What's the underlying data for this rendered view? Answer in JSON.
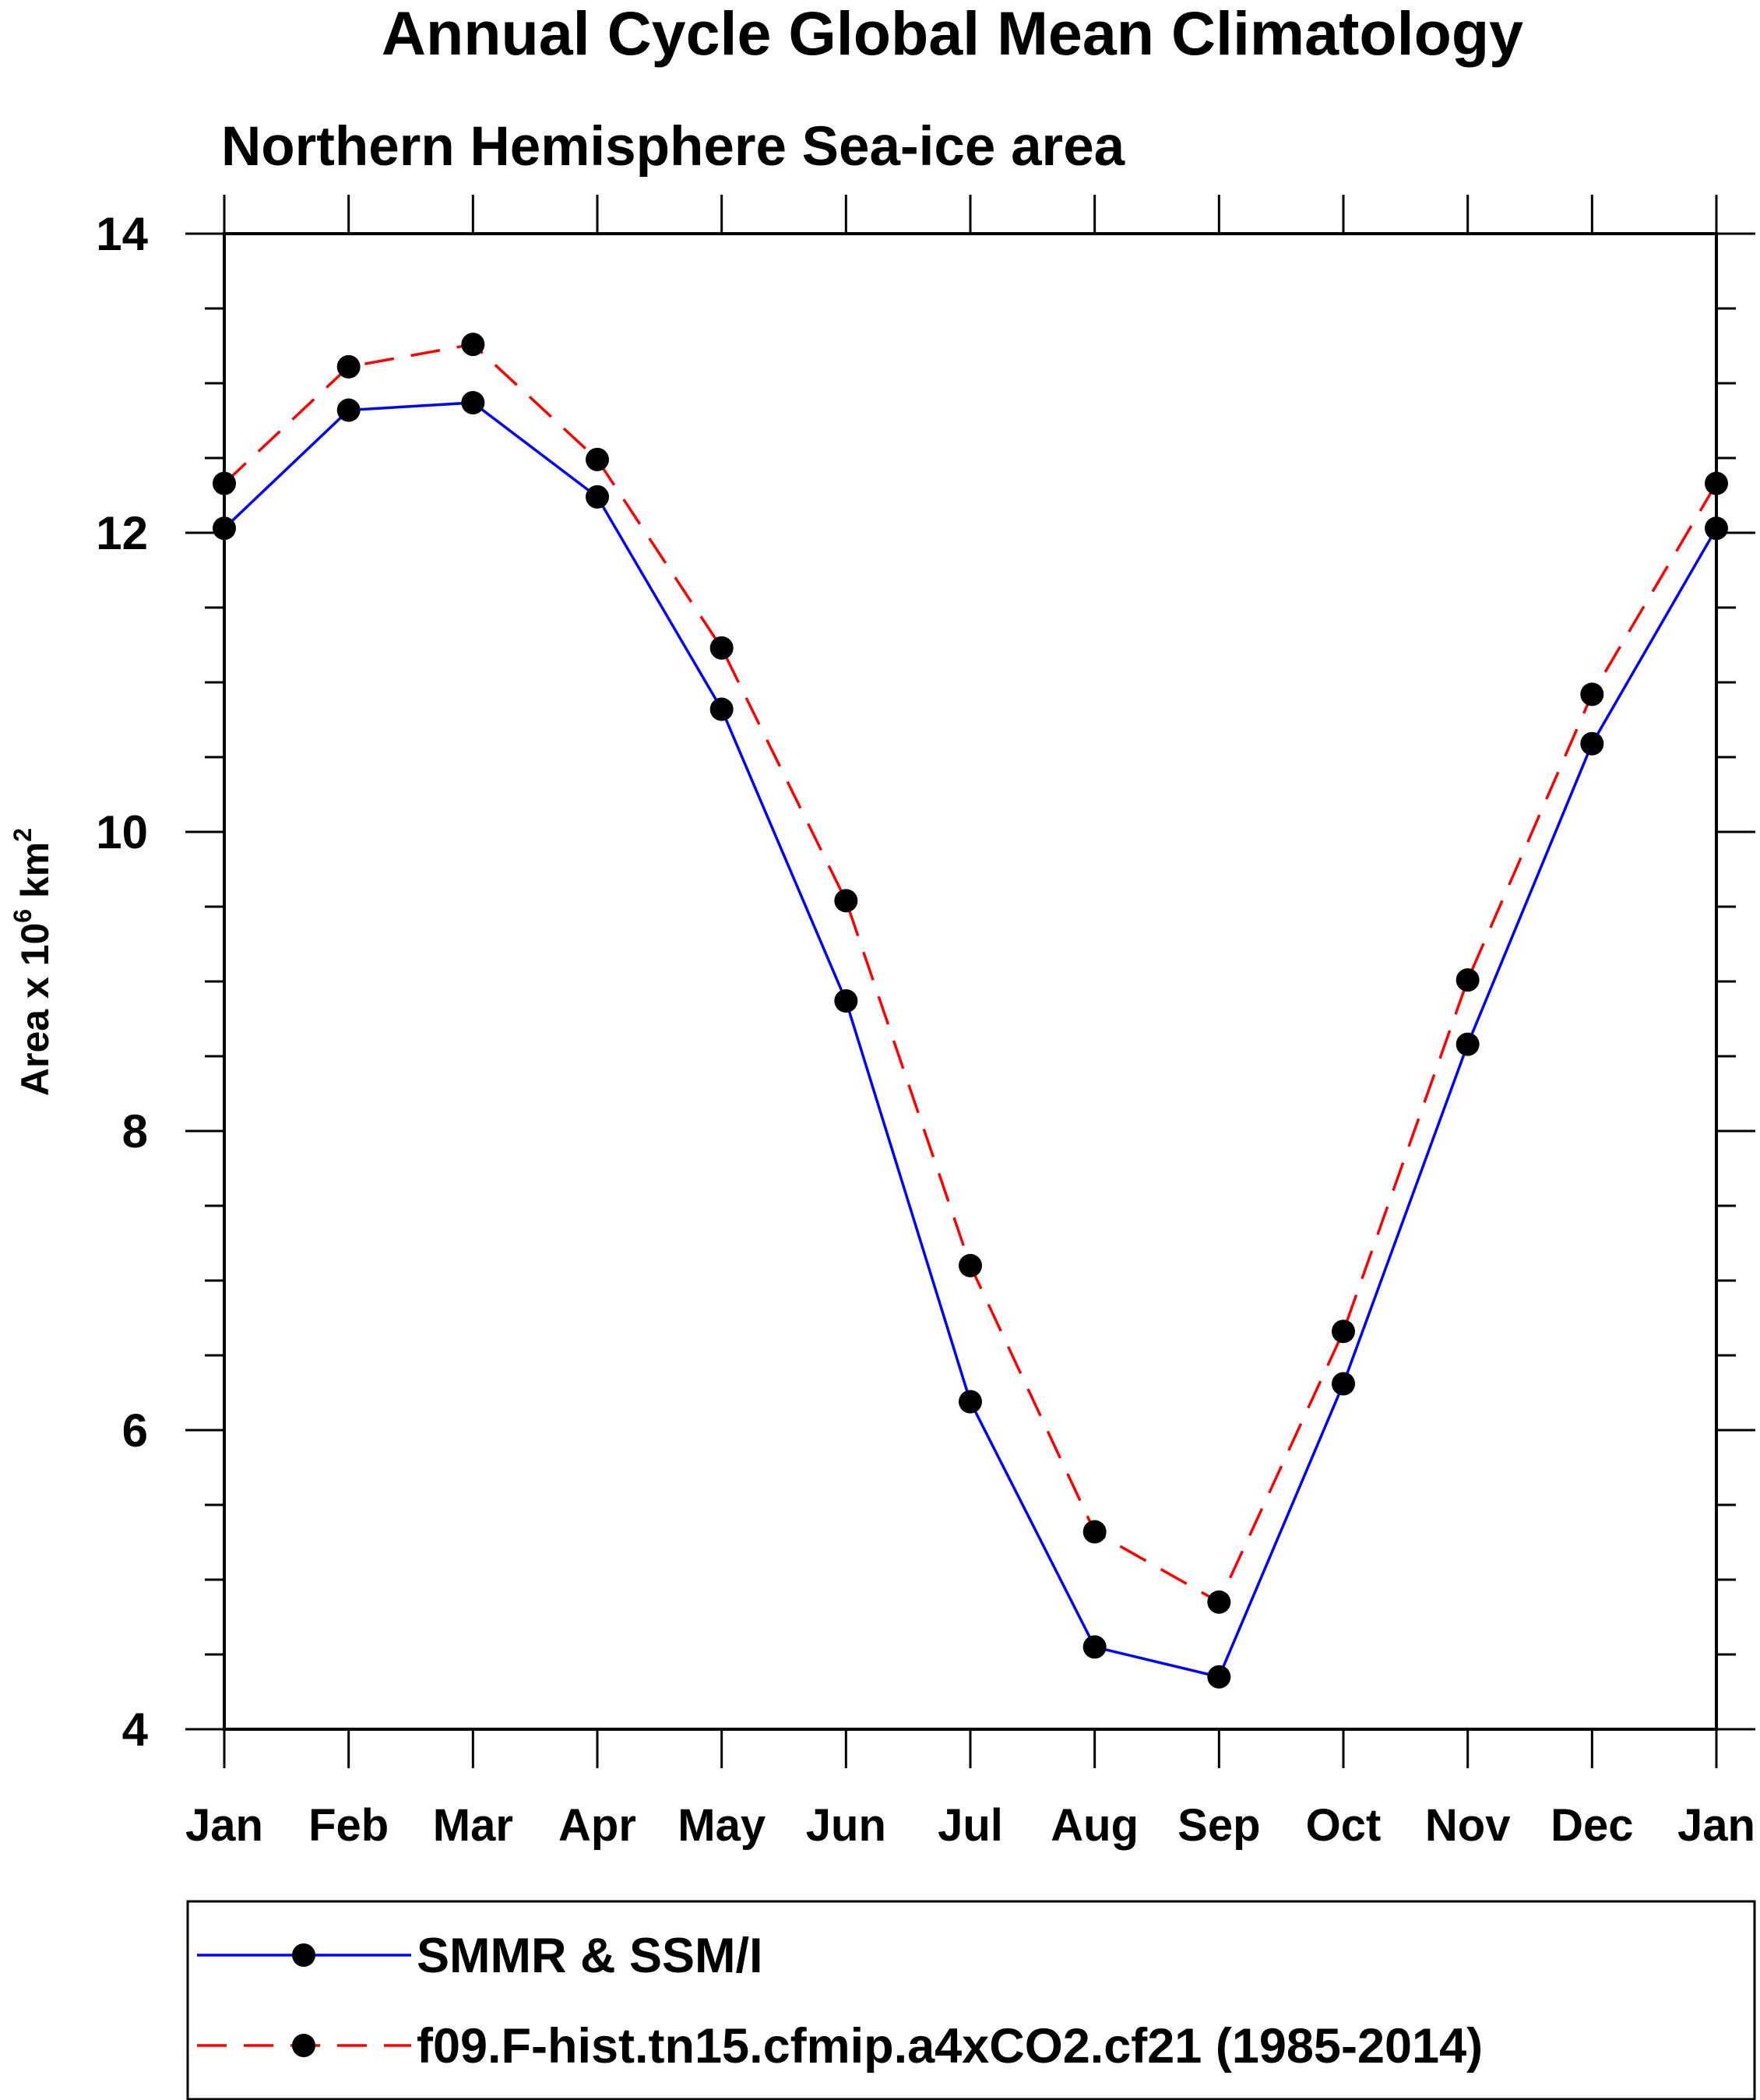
{
  "chart_data": {
    "type": "line",
    "title": "Annual Cycle Global Mean Climatology",
    "subtitle": "Northern Hemisphere Sea-ice area",
    "ylabel": "Area x 10",
    "ylabel_exp": "6",
    "ylabel_unit": " km",
    "ylabel_unit_exp": "2",
    "ylim": [
      4,
      14
    ],
    "yticks": [
      4,
      6,
      8,
      10,
      12,
      14
    ],
    "y_minor_step": 0.5,
    "categories": [
      "Jan",
      "Feb",
      "Mar",
      "Apr",
      "May",
      "Jun",
      "Jul",
      "Aug",
      "Sep",
      "Oct",
      "Nov",
      "Dec",
      "Jan"
    ],
    "series": [
      {
        "name": "SMMR & SSM/I",
        "color": "#0000ff",
        "dash": "solid",
        "values": [
          12.03,
          12.82,
          12.87,
          12.24,
          10.82,
          8.87,
          6.19,
          4.55,
          4.35,
          6.31,
          8.58,
          10.59,
          12.03
        ]
      },
      {
        "name": "f09.F-hist.tn15.cfmip.a4xCO2.cf21 (1985-2014)",
        "color": "#ff0000",
        "dash": "dashed",
        "values": [
          12.33,
          13.11,
          13.26,
          12.49,
          11.23,
          9.54,
          7.1,
          5.32,
          4.85,
          6.66,
          9.01,
          10.92,
          12.33
        ]
      }
    ]
  }
}
